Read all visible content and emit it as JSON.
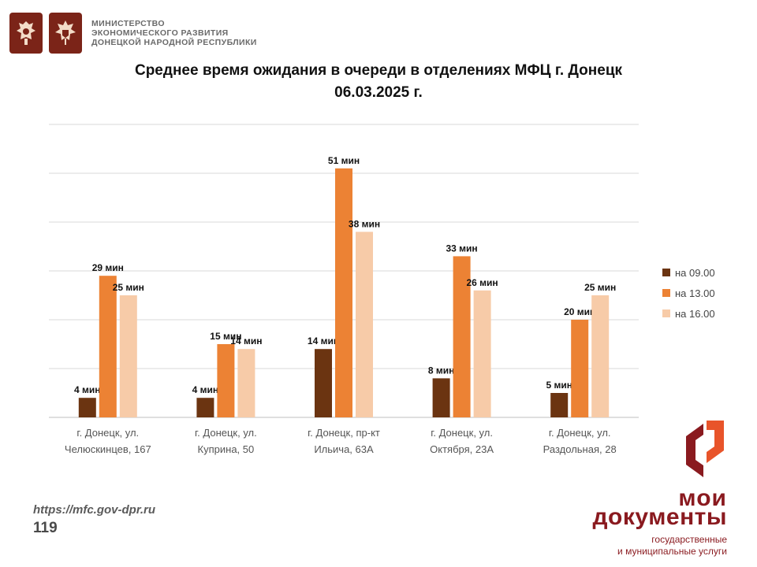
{
  "header": {
    "ministry_lines": [
      "МИНИСТЕРСТВО",
      "ЭКОНОМИЧЕСКОГО РАЗВИТИЯ",
      "ДОНЕЦКОЙ НАРОДНОЙ РЕСПУБЛИКИ"
    ],
    "emblem_icons": [
      "russia-emblem-icon",
      "dpr-emblem-icon"
    ],
    "emblem_color": "#7b2418"
  },
  "footer": {
    "url": "https://mfc.gov-dpr.ru",
    "page_number": "119",
    "brand_line1": "мои",
    "brand_line2": "документы",
    "brand_sub1": "государственные",
    "brand_sub2": "и муниципальные услуги",
    "brand_icon": "moi-dokumenty-logo-icon",
    "brand_color": "#8a1a1f",
    "brand_accent": "#e8542a"
  },
  "chart_data": {
    "type": "bar",
    "title_line1": "Среднее время ожидания в очереди в отделениях МФЦ г. Донецк",
    "title_line2": "06.03.2025 г.",
    "categories": [
      [
        "г. Донецк, ул.",
        "Челюскинцев, 167"
      ],
      [
        "г. Донецк, ул.",
        "Куприна, 50"
      ],
      [
        "г. Донецк, пр-кт",
        "Ильича, 63А"
      ],
      [
        "г. Донецк, ул.",
        "Октября, 23А"
      ],
      [
        "г. Донецк, ул.",
        "Раздольная, 28"
      ]
    ],
    "series": [
      {
        "name": "на 09.00",
        "color": "#6b3411",
        "values": [
          4,
          4,
          14,
          8,
          5
        ]
      },
      {
        "name": "на 13.00",
        "color": "#ec8234",
        "values": [
          29,
          15,
          51,
          33,
          20
        ]
      },
      {
        "name": "на 16.00",
        "color": "#f7cba8",
        "values": [
          25,
          14,
          38,
          26,
          25
        ]
      }
    ],
    "data_label_unit": "мин",
    "ylim": [
      0,
      60
    ],
    "grid": true,
    "legend_position": "right"
  }
}
